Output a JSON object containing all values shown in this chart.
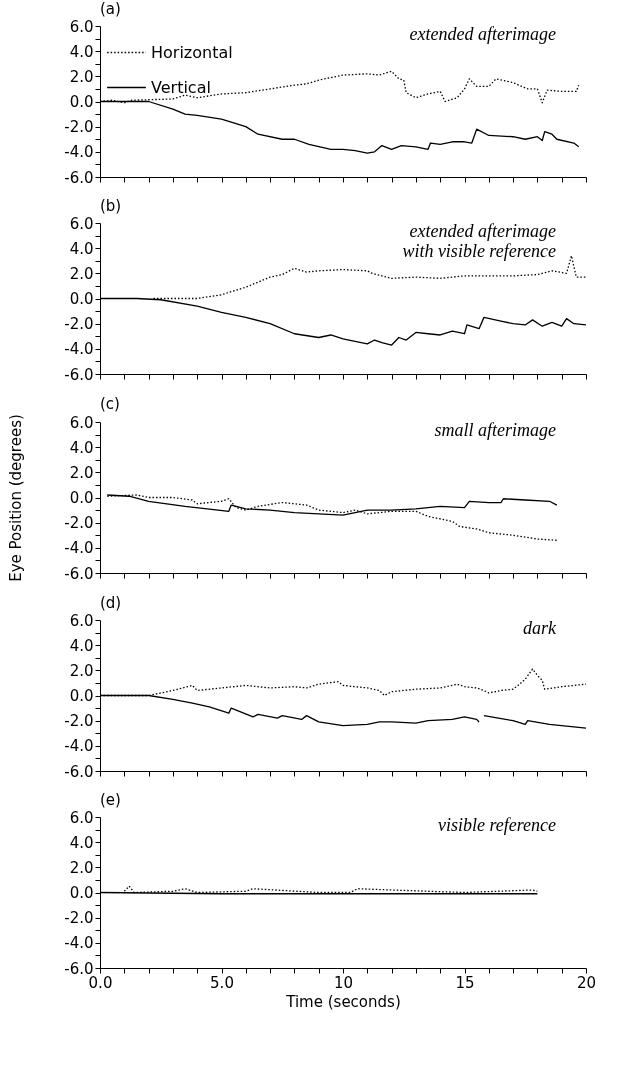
{
  "chart_data": [
    {
      "type": "line",
      "title": "(a)",
      "annotations": [
        "extended afterimage"
      ],
      "legend": "top left",
      "tick_labels": "y",
      "xlim": [
        0,
        20
      ],
      "ylim": [
        -6,
        6
      ],
      "xticks": [
        {
          "value": 0,
          "label": null
        },
        {
          "value": 1,
          "label": null
        },
        {
          "value": 2,
          "label": null
        },
        {
          "value": 3,
          "label": null
        },
        {
          "value": 4,
          "label": null
        },
        {
          "value": 5,
          "label": null
        },
        {
          "value": 6,
          "label": null
        },
        {
          "value": 7,
          "label": null
        },
        {
          "value": 8,
          "label": null
        },
        {
          "value": 9,
          "label": null
        },
        {
          "value": 10,
          "label": null
        },
        {
          "value": 11,
          "label": null
        },
        {
          "value": 12,
          "label": null
        },
        {
          "value": 13,
          "label": null
        },
        {
          "value": 14,
          "label": null
        },
        {
          "value": 15,
          "label": null
        },
        {
          "value": 16,
          "label": null
        },
        {
          "value": 17,
          "label": null
        },
        {
          "value": 18,
          "label": null
        },
        {
          "value": 19,
          "label": null
        },
        {
          "value": 20,
          "label": null
        }
      ],
      "yticks": [
        {
          "value": 6,
          "label": "6.0"
        },
        {
          "value": 5,
          "label": null
        },
        {
          "value": 4,
          "label": "4.0"
        },
        {
          "value": 3,
          "label": null
        },
        {
          "value": 2,
          "label": "2.0"
        },
        {
          "value": 1,
          "label": null
        },
        {
          "value": 0,
          "label": "0.0"
        },
        {
          "value": -1,
          "label": null
        },
        {
          "value": -2,
          "label": "-2.0"
        },
        {
          "value": -3,
          "label": null
        },
        {
          "value": -4,
          "label": "-4.0"
        },
        {
          "value": -5,
          "label": null
        },
        {
          "value": -6,
          "label": "-6.0"
        }
      ],
      "series": [
        {
          "name": "Horizontal",
          "color": "#000000",
          "line_style": "dotted",
          "x": [
            0,
            0.5,
            1,
            1.3,
            3,
            3.5,
            4,
            5,
            6,
            7,
            8,
            8.5,
            9,
            10,
            11,
            11.5,
            12,
            12.3,
            12.5,
            12.6,
            13,
            13.5,
            14,
            14.2,
            14.7,
            15,
            15.2,
            15.5,
            16,
            16.3,
            17,
            17.6,
            18,
            18.2,
            18.4,
            19,
            19.6,
            19.7
          ],
          "values": [
            0,
            0.1,
            -0.1,
            0.1,
            0.2,
            0.5,
            0.3,
            0.6,
            0.7,
            1.0,
            1.3,
            1.4,
            1.7,
            2.1,
            2.2,
            2.1,
            2.4,
            1.8,
            1.7,
            0.7,
            0.3,
            0.6,
            0.8,
            0.0,
            0.3,
            1.0,
            1.8,
            1.2,
            1.2,
            1.8,
            1.5,
            1.0,
            1.0,
            -0.1,
            0.9,
            0.8,
            0.8,
            1.3
          ]
        },
        {
          "name": "Vertical",
          "color": "#000000",
          "line_style": "solid",
          "x": [
            0,
            1.3,
            2,
            3,
            3.5,
            4,
            5,
            6,
            6.5,
            7.5,
            8,
            8.6,
            9.5,
            10,
            10.5,
            11,
            11.3,
            11.6,
            12,
            12.4,
            13,
            13.5,
            13.6,
            14,
            14.5,
            15,
            15.3,
            15.5,
            16,
            17,
            17.5,
            18,
            18.2,
            18.3,
            18.6,
            18.8,
            19.5,
            19.7
          ],
          "values": [
            0,
            0,
            0,
            -0.6,
            -1.0,
            -1.1,
            -1.4,
            -2.0,
            -2.6,
            -3.0,
            -3.0,
            -3.4,
            -3.8,
            -3.8,
            -3.9,
            -4.1,
            -4.0,
            -3.5,
            -3.8,
            -3.5,
            -3.6,
            -3.8,
            -3.3,
            -3.4,
            -3.2,
            -3.2,
            -3.3,
            -2.2,
            -2.7,
            -2.8,
            -3.0,
            -2.8,
            -3.1,
            -2.4,
            -2.6,
            -3.0,
            -3.3,
            -3.6
          ]
        }
      ]
    },
    {
      "type": "line",
      "title": "(b)",
      "annotations": [
        "extended afterimage\nwith visible reference"
      ],
      "tick_labels": "y",
      "xlim": [
        0,
        20
      ],
      "ylim": [
        -6,
        6
      ],
      "xticks": [
        {
          "value": 0,
          "label": null
        },
        {
          "value": 1,
          "label": null
        },
        {
          "value": 2,
          "label": null
        },
        {
          "value": 3,
          "label": null
        },
        {
          "value": 4,
          "label": null
        },
        {
          "value": 5,
          "label": null
        },
        {
          "value": 6,
          "label": null
        },
        {
          "value": 7,
          "label": null
        },
        {
          "value": 8,
          "label": null
        },
        {
          "value": 9,
          "label": null
        },
        {
          "value": 10,
          "label": null
        },
        {
          "value": 11,
          "label": null
        },
        {
          "value": 12,
          "label": null
        },
        {
          "value": 13,
          "label": null
        },
        {
          "value": 14,
          "label": null
        },
        {
          "value": 15,
          "label": null
        },
        {
          "value": 16,
          "label": null
        },
        {
          "value": 17,
          "label": null
        },
        {
          "value": 18,
          "label": null
        },
        {
          "value": 19,
          "label": null
        },
        {
          "value": 20,
          "label": null
        }
      ],
      "yticks": [
        {
          "value": 6,
          "label": "6.0"
        },
        {
          "value": 5,
          "label": null
        },
        {
          "value": 4,
          "label": "4.0"
        },
        {
          "value": 3,
          "label": null
        },
        {
          "value": 2,
          "label": "2.0"
        },
        {
          "value": 1,
          "label": null
        },
        {
          "value": 0,
          "label": "0.0"
        },
        {
          "value": -1,
          "label": null
        },
        {
          "value": -2,
          "label": "-2.0"
        },
        {
          "value": -3,
          "label": null
        },
        {
          "value": -4,
          "label": "-4.0"
        },
        {
          "value": -5,
          "label": null
        },
        {
          "value": -6,
          "label": "-6.0"
        }
      ],
      "series": [
        {
          "color": "#000000",
          "line_style": "dotted",
          "x": [
            2.2,
            4,
            5,
            6,
            7,
            7.5,
            8,
            8.5,
            9,
            10,
            11,
            11.2,
            12,
            13,
            14,
            14.5,
            15,
            16,
            17,
            18,
            18.6,
            19.2,
            19.4,
            19.6,
            20
          ],
          "values": [
            0,
            0,
            0.3,
            0.9,
            1.7,
            1.9,
            2.4,
            2.1,
            2.2,
            2.3,
            2.2,
            2.0,
            1.6,
            1.7,
            1.6,
            1.7,
            1.8,
            1.8,
            1.8,
            1.9,
            2.2,
            2.0,
            3.4,
            1.7,
            1.7
          ]
        },
        {
          "color": "#000000",
          "line_style": "solid",
          "x": [
            0,
            1.5,
            2.5,
            4,
            5,
            6,
            7,
            8,
            9,
            9.5,
            10,
            11,
            11.3,
            11.6,
            12,
            12.3,
            12.6,
            13,
            13.5,
            14,
            14.5,
            15,
            15.1,
            15.6,
            15.8,
            16.5,
            17,
            17.5,
            17.8,
            18.2,
            18.6,
            19,
            19.2,
            19.5,
            20
          ],
          "values": [
            0,
            0,
            -0.1,
            -0.6,
            -1.1,
            -1.5,
            -2.0,
            -2.8,
            -3.1,
            -2.9,
            -3.2,
            -3.6,
            -3.3,
            -3.5,
            -3.7,
            -3.1,
            -3.3,
            -2.7,
            -2.8,
            -2.9,
            -2.6,
            -2.8,
            -2.1,
            -2.4,
            -1.5,
            -1.8,
            -2.0,
            -2.1,
            -1.7,
            -2.2,
            -1.9,
            -2.2,
            -1.6,
            -2.0,
            -2.1
          ]
        }
      ]
    },
    {
      "type": "line",
      "title": "(c)",
      "ylabel": "Eye Position (degrees)",
      "annotations": [
        "small afterimage"
      ],
      "tick_labels": "y",
      "xlim": [
        0,
        20
      ],
      "ylim": [
        -6,
        6
      ],
      "xticks": [
        {
          "value": 0,
          "label": null
        },
        {
          "value": 1,
          "label": null
        },
        {
          "value": 2,
          "label": null
        },
        {
          "value": 3,
          "label": null
        },
        {
          "value": 4,
          "label": null
        },
        {
          "value": 5,
          "label": null
        },
        {
          "value": 6,
          "label": null
        },
        {
          "value": 7,
          "label": null
        },
        {
          "value": 8,
          "label": null
        },
        {
          "value": 9,
          "label": null
        },
        {
          "value": 10,
          "label": null
        },
        {
          "value": 11,
          "label": null
        },
        {
          "value": 12,
          "label": null
        },
        {
          "value": 13,
          "label": null
        },
        {
          "value": 14,
          "label": null
        },
        {
          "value": 15,
          "label": null
        },
        {
          "value": 16,
          "label": null
        },
        {
          "value": 17,
          "label": null
        },
        {
          "value": 18,
          "label": null
        },
        {
          "value": 19,
          "label": null
        },
        {
          "value": 20,
          "label": null
        }
      ],
      "yticks": [
        {
          "value": 6,
          "label": "6.0"
        },
        {
          "value": 5,
          "label": null
        },
        {
          "value": 4,
          "label": "4.0"
        },
        {
          "value": 3,
          "label": null
        },
        {
          "value": 2,
          "label": "2.0"
        },
        {
          "value": 1,
          "label": null
        },
        {
          "value": 0,
          "label": "0.0"
        },
        {
          "value": -1,
          "label": null
        },
        {
          "value": -2,
          "label": "-2.0"
        },
        {
          "value": -3,
          "label": null
        },
        {
          "value": -4,
          "label": "-4.0"
        },
        {
          "value": -5,
          "label": null
        },
        {
          "value": -6,
          "label": "-6.0"
        }
      ],
      "series": [
        {
          "color": "#000000",
          "line_style": "dotted",
          "x": [
            0.3,
            1.5,
            2,
            3,
            3.8,
            4,
            5,
            5.3,
            5.6,
            6,
            6.5,
            7.5,
            8.5,
            9,
            10,
            10.5,
            11,
            12,
            13,
            13.5,
            14.5,
            14.8,
            15.5,
            16,
            17,
            18,
            18.8
          ],
          "values": [
            0.1,
            0.2,
            0.0,
            0.0,
            -0.2,
            -0.5,
            -0.3,
            -0.1,
            -0.8,
            -1.0,
            -0.7,
            -0.4,
            -0.6,
            -1.0,
            -1.2,
            -1.0,
            -1.3,
            -1.1,
            -1.1,
            -1.5,
            -1.9,
            -2.3,
            -2.5,
            -2.8,
            -3.0,
            -3.3,
            -3.4
          ]
        },
        {
          "color": "#000000",
          "line_style": "solid",
          "x": [
            0.3,
            1.2,
            2,
            3.5,
            5.3,
            5.4,
            6,
            7,
            8,
            9,
            10,
            11,
            12,
            13,
            14,
            15,
            15.2,
            16,
            16.5,
            16.6,
            17.5,
            18.5,
            18.8
          ],
          "values": [
            0.2,
            0.1,
            -0.3,
            -0.7,
            -1.1,
            -0.6,
            -0.9,
            -1.0,
            -1.2,
            -1.3,
            -1.4,
            -1.0,
            -1.0,
            -0.9,
            -0.7,
            -0.8,
            -0.3,
            -0.4,
            -0.4,
            -0.1,
            -0.2,
            -0.3,
            -0.6
          ]
        }
      ]
    },
    {
      "type": "line",
      "title": "(d)",
      "annotations": [
        "dark"
      ],
      "tick_labels": "y",
      "xlim": [
        0,
        20
      ],
      "ylim": [
        -6,
        6
      ],
      "xticks": [
        {
          "value": 0,
          "label": null
        },
        {
          "value": 1,
          "label": null
        },
        {
          "value": 2,
          "label": null
        },
        {
          "value": 3,
          "label": null
        },
        {
          "value": 4,
          "label": null
        },
        {
          "value": 5,
          "label": null
        },
        {
          "value": 6,
          "label": null
        },
        {
          "value": 7,
          "label": null
        },
        {
          "value": 8,
          "label": null
        },
        {
          "value": 9,
          "label": null
        },
        {
          "value": 10,
          "label": null
        },
        {
          "value": 11,
          "label": null
        },
        {
          "value": 12,
          "label": null
        },
        {
          "value": 13,
          "label": null
        },
        {
          "value": 14,
          "label": null
        },
        {
          "value": 15,
          "label": null
        },
        {
          "value": 16,
          "label": null
        },
        {
          "value": 17,
          "label": null
        },
        {
          "value": 18,
          "label": null
        },
        {
          "value": 19,
          "label": null
        },
        {
          "value": 20,
          "label": null
        }
      ],
      "yticks": [
        {
          "value": 6,
          "label": "6.0"
        },
        {
          "value": 5,
          "label": null
        },
        {
          "value": 4,
          "label": "4.0"
        },
        {
          "value": 3,
          "label": null
        },
        {
          "value": 2,
          "label": "2.0"
        },
        {
          "value": 1,
          "label": null
        },
        {
          "value": 0,
          "label": "0.0"
        },
        {
          "value": -1,
          "label": null
        },
        {
          "value": -2,
          "label": "-2.0"
        },
        {
          "value": -3,
          "label": null
        },
        {
          "value": -4,
          "label": "-4.0"
        },
        {
          "value": -5,
          "label": null
        },
        {
          "value": -6,
          "label": "-6.0"
        }
      ],
      "series": [
        {
          "color": "#000000",
          "line_style": "dotted",
          "x": [
            0,
            2,
            3,
            3.8,
            4,
            5,
            6,
            7,
            8,
            8.5,
            9,
            9.8,
            10,
            11,
            11.5,
            11.7,
            12,
            13,
            14,
            14.7,
            15,
            15.5,
            15.8,
            16,
            16.5,
            17,
            17.2,
            17.5,
            17.8,
            18,
            18.2,
            18.3,
            19,
            19.5,
            20
          ],
          "values": [
            0,
            0,
            0.4,
            0.8,
            0.4,
            0.6,
            0.8,
            0.6,
            0.7,
            0.6,
            0.9,
            1.1,
            0.8,
            0.6,
            0.4,
            0.0,
            0.3,
            0.5,
            0.6,
            0.9,
            0.7,
            0.6,
            0.4,
            0.2,
            0.4,
            0.5,
            0.8,
            1.3,
            2.1,
            1.6,
            1.2,
            0.5,
            0.7,
            0.8,
            0.9
          ]
        },
        {
          "color": "#000000",
          "line_style": "solid",
          "x": [
            0,
            2,
            3,
            3.8,
            4.5,
            5.3,
            5.4,
            6.3,
            6.5,
            7.3,
            7.5,
            8.3,
            8.5,
            9,
            10,
            11,
            11.5,
            12,
            13,
            13.5,
            14.5,
            15,
            15.5,
            15.6,
            15.7,
            15.8,
            17,
            17.5,
            17.6,
            18.5,
            19,
            20
          ],
          "values": [
            0,
            0,
            -0.3,
            -0.6,
            -0.9,
            -1.4,
            -1.0,
            -1.7,
            -1.5,
            -1.8,
            -1.6,
            -1.9,
            -1.6,
            -2.1,
            -2.4,
            -2.3,
            -2.1,
            -2.1,
            -2.2,
            -2.0,
            -1.9,
            -1.7,
            -1.9,
            -2.1,
            null,
            -1.6,
            -2.0,
            -2.3,
            -2.0,
            -2.3,
            -2.4,
            -2.6
          ]
        }
      ]
    },
    {
      "type": "line",
      "title": "(e)",
      "xlabel": "Time (seconds)",
      "annotations": [
        "visible reference"
      ],
      "xlim": [
        0,
        20
      ],
      "ylim": [
        -6,
        6
      ],
      "xticks": [
        {
          "value": 0,
          "label": "0.0"
        },
        {
          "value": 1,
          "label": null
        },
        {
          "value": 2,
          "label": null
        },
        {
          "value": 3,
          "label": null
        },
        {
          "value": 4,
          "label": null
        },
        {
          "value": 5,
          "label": "5.0"
        },
        {
          "value": 6,
          "label": null
        },
        {
          "value": 7,
          "label": null
        },
        {
          "value": 8,
          "label": null
        },
        {
          "value": 9,
          "label": null
        },
        {
          "value": 10,
          "label": "10"
        },
        {
          "value": 11,
          "label": null
        },
        {
          "value": 12,
          "label": null
        },
        {
          "value": 13,
          "label": null
        },
        {
          "value": 14,
          "label": null
        },
        {
          "value": 15,
          "label": "15"
        },
        {
          "value": 16,
          "label": null
        },
        {
          "value": 17,
          "label": null
        },
        {
          "value": 18,
          "label": null
        },
        {
          "value": 19,
          "label": null
        },
        {
          "value": 20,
          "label": "20"
        }
      ],
      "yticks": [
        {
          "value": 6,
          "label": "6.0"
        },
        {
          "value": 5,
          "label": null
        },
        {
          "value": 4,
          "label": "4.0"
        },
        {
          "value": 3,
          "label": null
        },
        {
          "value": 2,
          "label": "2.0"
        },
        {
          "value": 1,
          "label": null
        },
        {
          "value": 0,
          "label": "0.0"
        },
        {
          "value": -1,
          "label": null
        },
        {
          "value": -2,
          "label": "-2.0"
        },
        {
          "value": -3,
          "label": null
        },
        {
          "value": -4,
          "label": "-4.0"
        },
        {
          "value": -5,
          "label": null
        },
        {
          "value": -6,
          "label": "-6.0"
        }
      ],
      "series": [
        {
          "color": "#000000",
          "line_style": "dotted",
          "x": [
            1.0,
            1.2,
            1.4,
            3,
            3.5,
            4,
            6,
            6.3,
            9,
            10.3,
            10.6,
            12,
            15,
            17.8,
            18
          ],
          "values": [
            0.1,
            0.5,
            0.0,
            0.1,
            0.3,
            0.0,
            0.1,
            0.3,
            0.0,
            0.0,
            0.3,
            0.2,
            0.0,
            0.2,
            0.1
          ]
        },
        {
          "color": "#000000",
          "line_style": "solid",
          "x": [
            0,
            5,
            10,
            15,
            18
          ],
          "values": [
            0,
            -0.1,
            -0.1,
            -0.1,
            -0.1
          ]
        }
      ]
    }
  ]
}
